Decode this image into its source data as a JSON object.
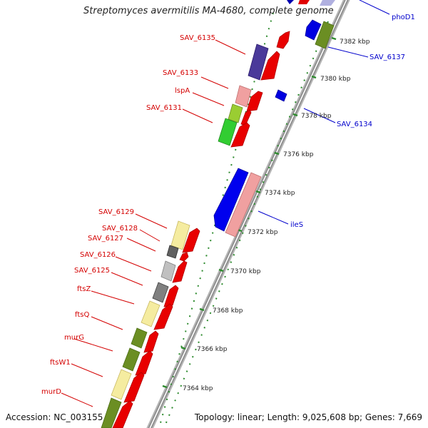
{
  "title": "Streptomyces avermitilis MA-4680, complete genome",
  "footer": {
    "accession": "Accession: NC_003155",
    "summary": "Topology: linear; Length: 9,025,608 bp; Genes: 7,669"
  },
  "colors": {
    "backbone": "#8c8c8c",
    "label_red": "#d40000",
    "label_blue": "#0000cc",
    "tick_green": "#2e8b2e"
  },
  "scale_labels": [
    "7382 kbp",
    "7380 kbp",
    "7378 kbp",
    "7376 kbp",
    "7374 kbp",
    "7372 kbp",
    "7370 kbp",
    "7368 kbp",
    "7366 kbp",
    "7364 kbp"
  ],
  "left_genes": [
    {
      "name": "SAV_6135"
    },
    {
      "name": "SAV_6133"
    },
    {
      "name": "lspA"
    },
    {
      "name": "SAV_6131"
    },
    {
      "name": "SAV_6129"
    },
    {
      "name": "SAV_6128"
    },
    {
      "name": "SAV_6127"
    },
    {
      "name": "SAV_6126"
    },
    {
      "name": "SAV_6125"
    },
    {
      "name": "ftsZ"
    },
    {
      "name": "ftsQ"
    },
    {
      "name": "murG"
    },
    {
      "name": "ftsW1"
    },
    {
      "name": "murD"
    }
  ],
  "right_genes": [
    {
      "name": "phoD1"
    },
    {
      "name": "SAV_6137"
    },
    {
      "name": "SAV_6134"
    },
    {
      "name": "ileS"
    }
  ]
}
